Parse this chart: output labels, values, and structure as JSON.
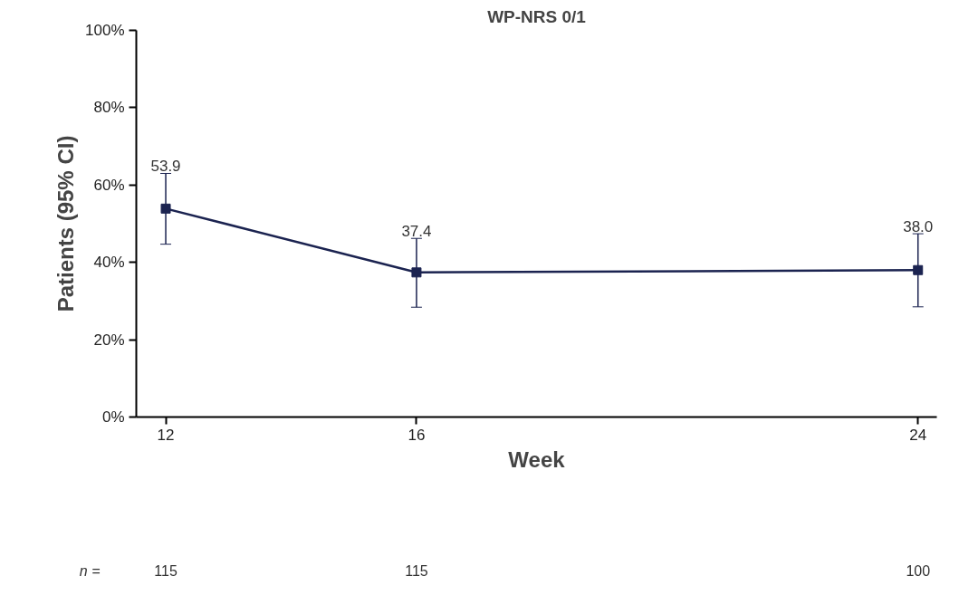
{
  "chart_data": {
    "type": "line",
    "title": "WP-NRS 0/1",
    "xlabel": "Week",
    "ylabel": "Patients (95% CI)",
    "x": [
      12,
      16,
      24
    ],
    "series": [
      {
        "color": "#1b2350",
        "values": [
          53.9,
          37.4,
          38.0
        ],
        "value_labels": [
          "53.9",
          "37.4",
          "38.0"
        ],
        "errors": [
          [
            44.7,
            63.0
          ],
          [
            28.4,
            46.2
          ],
          [
            28.5,
            47.4
          ]
        ]
      }
    ],
    "marker": "square",
    "line_style": "solid",
    "grid": false,
    "xlim": [
      11.53,
      24.3
    ],
    "xticks": [
      12,
      16,
      24
    ],
    "ylim": [
      0,
      100
    ],
    "yticks": [
      {
        "value": 0,
        "label": "0%"
      },
      {
        "value": 20,
        "label": "20%"
      },
      {
        "value": 40,
        "label": "40%"
      },
      {
        "value": 60,
        "label": "60%"
      },
      {
        "value": 80,
        "label": "80%"
      },
      {
        "value": 100,
        "label": "100%"
      }
    ],
    "annotations": [
      "n =",
      "115",
      "115",
      "100"
    ]
  }
}
